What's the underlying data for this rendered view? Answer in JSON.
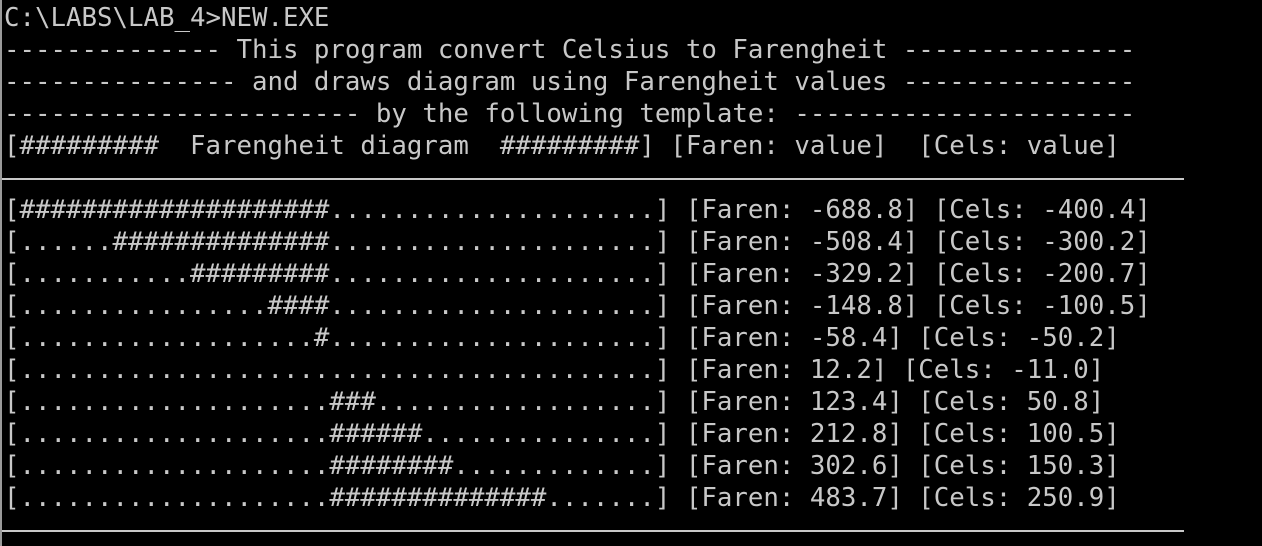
{
  "prompt": "C:\\LABS\\LAB_4>NEW.EXE",
  "header": {
    "line1": "-------------- This program convert Celsius to Farengheit ---------------",
    "line2": "--------------- and draws diagram using Farengheit values ---------------",
    "line3": "----------------------- by the following template: ----------------------",
    "template": "[#########  Farengheit diagram  #########] [Faren: value]  [Cels: value]"
  },
  "rows": [
    "[####################.....................] [Faren: -688.8] [Cels: -400.4]",
    "[......##############.....................] [Faren: -508.4] [Cels: -300.2]",
    "[...........#########.....................] [Faren: -329.2] [Cels: -200.7]",
    "[................####.....................] [Faren: -148.8] [Cels: -100.5]",
    "[...................#.....................] [Faren: -58.4] [Cels: -50.2]",
    "[.........................................] [Faren: 12.2] [Cels: -11.0]",
    "[....................###..................] [Faren: 123.4] [Cels: 50.8]",
    "[....................######...............] [Faren: 212.8] [Cels: 100.5]",
    "[....................########.............] [Faren: 302.6] [Cels: 150.3]",
    "[....................##############.......] [Faren: 483.7] [Cels: 250.9]"
  ],
  "colors": {
    "background": "#000000",
    "foreground": "#c8c8c8"
  }
}
